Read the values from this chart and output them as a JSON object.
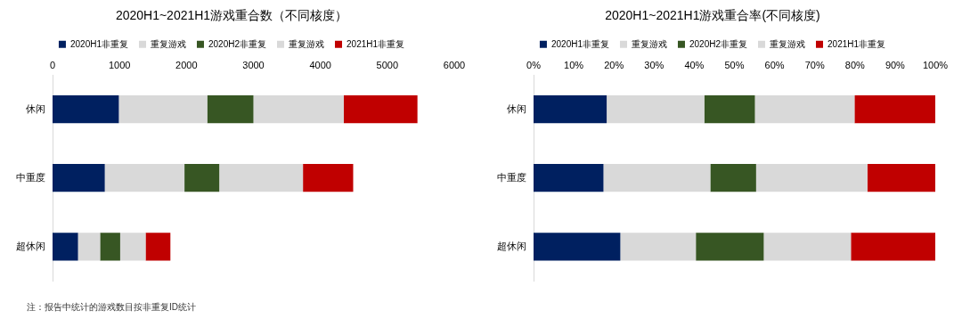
{
  "chart_data": [
    {
      "type": "bar",
      "orientation": "horizontal",
      "stacked": true,
      "title": "2020H1~2021H1游戏重合数（不同核度）",
      "categories": [
        "休闲",
        "中重度",
        "超休闲"
      ],
      "series": [
        {
          "name": "2020H1非重复",
          "color": "#002060",
          "values": [
            990,
            780,
            380
          ]
        },
        {
          "name": "重复游戏",
          "color": "#d9d9d9",
          "values": [
            1320,
            1190,
            330
          ]
        },
        {
          "name": "2020H2非重复",
          "color": "#375623",
          "values": [
            690,
            520,
            300
          ]
        },
        {
          "name": "重复游戏",
          "color": "#d9d9d9",
          "values": [
            1350,
            1250,
            380
          ]
        },
        {
          "name": "2021H1非重复",
          "color": "#c00000",
          "values": [
            1100,
            750,
            370
          ]
        }
      ],
      "xlim": [
        0,
        6000
      ],
      "xticks": [
        0,
        1000,
        2000,
        3000,
        4000,
        5000,
        6000
      ],
      "grid": false,
      "legend": "top",
      "annotations": [
        "注：报告中统计的游戏数目按非重复ID统计"
      ]
    },
    {
      "type": "bar",
      "orientation": "horizontal",
      "stacked": true,
      "title": "2020H1~2021H1游戏重合率(不同核度)",
      "categories": [
        "休闲",
        "中重度",
        "超休闲"
      ],
      "series": [
        {
          "name": "2020H1非重复",
          "color": "#002060",
          "values": [
            18.2,
            17.4,
            21.6
          ]
        },
        {
          "name": "重复游戏",
          "color": "#d9d9d9",
          "values": [
            24.3,
            26.6,
            18.8
          ]
        },
        {
          "name": "2020H2非重复",
          "color": "#375623",
          "values": [
            12.6,
            11.4,
            16.9
          ]
        },
        {
          "name": "重复游戏",
          "color": "#d9d9d9",
          "values": [
            24.8,
            27.7,
            21.7
          ]
        },
        {
          "name": "2021H1非重复",
          "color": "#c00000",
          "values": [
            20.1,
            16.9,
            21.0
          ]
        }
      ],
      "xlim": [
        0,
        100
      ],
      "xticks": [
        {
          "value": 0,
          "label": "0%"
        },
        {
          "value": 10,
          "label": "10%"
        },
        {
          "value": 20,
          "label": "20%"
        },
        {
          "value": 30,
          "label": "30%"
        },
        {
          "value": 40,
          "label": "40%"
        },
        {
          "value": 50,
          "label": "50%"
        },
        {
          "value": 60,
          "label": "60%"
        },
        {
          "value": 70,
          "label": "70%"
        },
        {
          "value": 80,
          "label": "80%"
        },
        {
          "value": 90,
          "label": "90%"
        },
        {
          "value": 100,
          "label": "100%"
        }
      ],
      "grid": false,
      "legend": "top"
    }
  ]
}
